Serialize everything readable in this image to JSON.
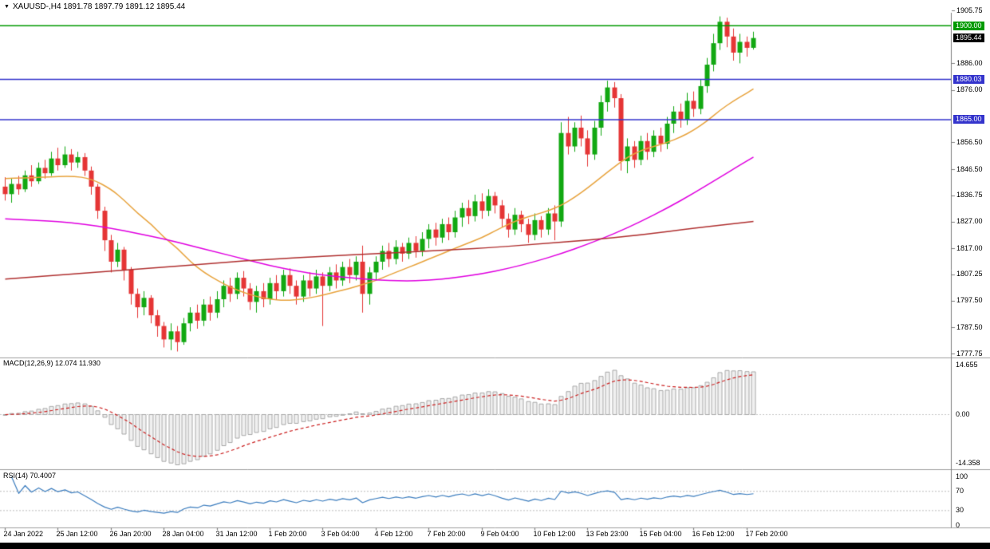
{
  "header": {
    "dropdown_icon": "▼",
    "title": "XAUUSD-,H4  1891.78 1897.79 1891.12 1895.44"
  },
  "colors": {
    "background": "#FFFFFF",
    "bull": "#12A812",
    "bear": "#E53535",
    "hline_green": "#009A00",
    "hline_blue": "#3333CC",
    "current_tag_bg": "#000000",
    "ma_fast": "#E8A33D",
    "ma_mid": "#E000E0",
    "ma_slow": "#B03030",
    "macd_bar_fill": "#F0F0F0",
    "macd_bar_stroke": "#A8A8A8",
    "macd_signal": "#CC2222",
    "rsi_line": "#3D7EBF",
    "grid_dotted": "#C8C8C8",
    "divider": "#A0A0A0",
    "scale_line": "#808080",
    "text": "#000000",
    "taskbar": "#000000"
  },
  "price_scale": {
    "ticks": [
      {
        "label": "1905.75",
        "value": 1905.75
      },
      {
        "label": "1886.00",
        "value": 1886.0
      },
      {
        "label": "1876.00",
        "value": 1876.0
      },
      {
        "label": "1856.50",
        "value": 1856.5
      },
      {
        "label": "1846.50",
        "value": 1846.5
      },
      {
        "label": "1836.75",
        "value": 1836.75
      },
      {
        "label": "1827.00",
        "value": 1827.0
      },
      {
        "label": "1817.00",
        "value": 1817.0
      },
      {
        "label": "1807.25",
        "value": 1807.25
      },
      {
        "label": "1797.50",
        "value": 1797.5
      },
      {
        "label": "1787.50",
        "value": 1787.5
      },
      {
        "label": "1777.75",
        "value": 1777.75
      }
    ],
    "tags": [
      {
        "label": "1900.00",
        "value": 1900.0,
        "bg": "#009A00",
        "name": "resistance-line-price-tag"
      },
      {
        "label": "1895.44",
        "value": 1895.44,
        "bg": "#000000",
        "name": "current-price-tag"
      },
      {
        "label": "1880.03",
        "value": 1880.03,
        "bg": "#3333CC",
        "name": "blue-line-price-tag-upper"
      },
      {
        "label": "1865.00",
        "value": 1865.0,
        "bg": "#3333CC",
        "name": "blue-line-price-tag-lower"
      }
    ]
  },
  "chart_data": {
    "type": "candlestick",
    "symbol": "XAUUSD-",
    "timeframe": "H4",
    "axis_top_price": 1905.75,
    "visible_price_range": [
      1777.75,
      1905.75
    ],
    "ohlc": [
      [
        1840,
        1843.5,
        1834.8,
        1837.2
      ],
      [
        1837.2,
        1843.2,
        1834,
        1841
      ],
      [
        1841,
        1844,
        1837,
        1839
      ],
      [
        1839,
        1846,
        1838,
        1844.2
      ],
      [
        1844.2,
        1848,
        1840,
        1842
      ],
      [
        1842,
        1849,
        1841,
        1847
      ],
      [
        1847,
        1850,
        1843,
        1845
      ],
      [
        1845,
        1853,
        1844,
        1850.5
      ],
      [
        1850.5,
        1854.5,
        1846,
        1848
      ],
      [
        1848,
        1855,
        1847,
        1852
      ],
      [
        1852,
        1854,
        1846,
        1849
      ],
      [
        1849,
        1853,
        1847,
        1851
      ],
      [
        1851,
        1852.5,
        1844,
        1846
      ],
      [
        1846,
        1847.5,
        1837,
        1840
      ],
      [
        1840,
        1841,
        1828,
        1831
      ],
      [
        1831,
        1832.5,
        1816,
        1820
      ],
      [
        1820,
        1822,
        1808,
        1812
      ],
      [
        1812,
        1819,
        1810,
        1816.5
      ],
      [
        1816.5,
        1817.5,
        1805,
        1809
      ],
      [
        1809,
        1810,
        1796,
        1800
      ],
      [
        1800,
        1802,
        1791,
        1795
      ],
      [
        1795,
        1801,
        1792,
        1798.5
      ],
      [
        1798.5,
        1799.5,
        1789,
        1792
      ],
      [
        1792,
        1794,
        1784,
        1788
      ],
      [
        1788,
        1789.5,
        1780,
        1783
      ],
      [
        1783,
        1789,
        1779,
        1786
      ],
      [
        1786,
        1788,
        1778.5,
        1782
      ],
      [
        1782,
        1791,
        1781,
        1789
      ],
      [
        1789,
        1795,
        1786,
        1793
      ],
      [
        1793,
        1796,
        1787,
        1790
      ],
      [
        1790,
        1798,
        1788,
        1796
      ],
      [
        1796,
        1799,
        1790,
        1793
      ],
      [
        1793,
        1801,
        1791,
        1798
      ],
      [
        1798,
        1805,
        1795,
        1803
      ],
      [
        1803,
        1806,
        1797,
        1800
      ],
      [
        1800,
        1808,
        1798,
        1806
      ],
      [
        1806,
        1808.5,
        1799,
        1802
      ],
      [
        1802,
        1804,
        1794,
        1797
      ],
      [
        1797,
        1803,
        1793,
        1801
      ],
      [
        1801,
        1804,
        1795,
        1798
      ],
      [
        1798,
        1806,
        1796,
        1804
      ],
      [
        1804,
        1807,
        1798,
        1801
      ],
      [
        1801,
        1809,
        1799,
        1807
      ],
      [
        1807,
        1809.5,
        1800,
        1803
      ],
      [
        1803,
        1805,
        1796,
        1799
      ],
      [
        1799,
        1807,
        1797,
        1805
      ],
      [
        1805,
        1808,
        1799,
        1802
      ],
      [
        1802,
        1809,
        1800,
        1806.5
      ],
      [
        1806.5,
        1808,
        1788,
        1803
      ],
      [
        1803,
        1810,
        1801,
        1808
      ],
      [
        1808,
        1811,
        1802,
        1805
      ],
      [
        1805,
        1812,
        1803,
        1810
      ],
      [
        1810,
        1813,
        1804,
        1807
      ],
      [
        1807,
        1814,
        1805,
        1812
      ],
      [
        1812,
        1818,
        1793,
        1800
      ],
      [
        1800,
        1810,
        1796,
        1808
      ],
      [
        1808,
        1814,
        1805,
        1812
      ],
      [
        1812,
        1818,
        1809,
        1816
      ],
      [
        1816,
        1819,
        1810,
        1813
      ],
      [
        1813,
        1820,
        1811,
        1817.5
      ],
      [
        1817.5,
        1819,
        1812,
        1815
      ],
      [
        1815,
        1821,
        1813,
        1819
      ],
      [
        1819,
        1821.5,
        1813.5,
        1816
      ],
      [
        1816,
        1823,
        1814,
        1820.5
      ],
      [
        1820.5,
        1826,
        1817,
        1824
      ],
      [
        1824,
        1826.5,
        1818,
        1821
      ],
      [
        1821,
        1828,
        1819,
        1826
      ],
      [
        1826,
        1828.5,
        1820,
        1823
      ],
      [
        1823,
        1831,
        1821,
        1828.5
      ],
      [
        1828.5,
        1834,
        1825,
        1832
      ],
      [
        1832,
        1835,
        1826,
        1829
      ],
      [
        1829,
        1837,
        1827,
        1834.5
      ],
      [
        1834.5,
        1837.5,
        1828,
        1831
      ],
      [
        1831,
        1839,
        1829,
        1836.5
      ],
      [
        1836.5,
        1838,
        1830,
        1833
      ],
      [
        1833,
        1835,
        1825,
        1828
      ],
      [
        1828,
        1830,
        1821,
        1824
      ],
      [
        1824,
        1832,
        1822,
        1829.5
      ],
      [
        1829.5,
        1831,
        1823,
        1826
      ],
      [
        1826,
        1828,
        1819,
        1822
      ],
      [
        1822,
        1830,
        1820,
        1827.5
      ],
      [
        1827.5,
        1829,
        1821,
        1824
      ],
      [
        1824,
        1832,
        1822,
        1830
      ],
      [
        1830,
        1833,
        1820,
        1827
      ],
      [
        1827,
        1864,
        1825,
        1860
      ],
      [
        1860,
        1866,
        1852,
        1855
      ],
      [
        1855,
        1864,
        1853,
        1862
      ],
      [
        1862,
        1866.5,
        1855,
        1858
      ],
      [
        1858,
        1861,
        1847.5,
        1852
      ],
      [
        1852,
        1864.5,
        1850,
        1862
      ],
      [
        1862,
        1874,
        1859,
        1871.5
      ],
      [
        1871.5,
        1879.5,
        1868,
        1877
      ],
      [
        1877,
        1879,
        1869.5,
        1873
      ],
      [
        1873,
        1874.5,
        1846,
        1849.5
      ],
      [
        1849.5,
        1858,
        1845,
        1855
      ],
      [
        1855,
        1857,
        1847,
        1850
      ],
      [
        1850,
        1859,
        1848,
        1857
      ],
      [
        1857,
        1860,
        1850,
        1853
      ],
      [
        1853,
        1861,
        1851,
        1859
      ],
      [
        1859,
        1862,
        1853,
        1856
      ],
      [
        1856,
        1866,
        1854,
        1863.5
      ],
      [
        1863.5,
        1870,
        1860,
        1868
      ],
      [
        1868,
        1871,
        1862,
        1865
      ],
      [
        1865,
        1875,
        1863,
        1872
      ],
      [
        1872,
        1875.5,
        1866,
        1869
      ],
      [
        1869,
        1880,
        1867,
        1877.5
      ],
      [
        1877.5,
        1888,
        1875,
        1885.5
      ],
      [
        1885.5,
        1897,
        1883,
        1893.5
      ],
      [
        1893.5,
        1903.5,
        1891,
        1901.5
      ],
      [
        1901.5,
        1903,
        1892,
        1896
      ],
      [
        1896,
        1899,
        1887,
        1890
      ],
      [
        1890,
        1897,
        1886,
        1894
      ],
      [
        1894,
        1896,
        1888.5,
        1891.78
      ],
      [
        1891.78,
        1897.79,
        1891.12,
        1895.44
      ]
    ],
    "hlines": [
      {
        "value": 1900.0,
        "color": "#009A00",
        "name": "green-resistance-line"
      },
      {
        "value": 1880.03,
        "color": "#3333CC",
        "name": "blue-level-line-upper"
      },
      {
        "value": 1865.0,
        "color": "#3333CC",
        "name": "blue-level-line-lower"
      }
    ],
    "moving_averages": [
      {
        "name": "fast-ma-orange",
        "color": "#E8A33D",
        "points": [
          [
            0,
            1843
          ],
          [
            6,
            1843.5
          ],
          [
            10,
            1844
          ],
          [
            13,
            1843
          ],
          [
            16,
            1839
          ],
          [
            18,
            1835
          ],
          [
            20,
            1830
          ],
          [
            22,
            1826
          ],
          [
            24,
            1821
          ],
          [
            26,
            1817
          ],
          [
            28,
            1812
          ],
          [
            30,
            1808
          ],
          [
            32,
            1805
          ],
          [
            34,
            1802.5
          ],
          [
            36,
            1800.5
          ],
          [
            38,
            1799
          ],
          [
            40,
            1798
          ],
          [
            42,
            1797.5
          ],
          [
            44,
            1797.8
          ],
          [
            46,
            1798.5
          ],
          [
            48,
            1799.5
          ],
          [
            50,
            1800.8
          ],
          [
            52,
            1802
          ],
          [
            54,
            1803.5
          ],
          [
            56,
            1805
          ],
          [
            58,
            1807
          ],
          [
            60,
            1809
          ],
          [
            62,
            1811
          ],
          [
            64,
            1813
          ],
          [
            66,
            1815
          ],
          [
            68,
            1817
          ],
          [
            70,
            1819
          ],
          [
            72,
            1821
          ],
          [
            74,
            1823.5
          ],
          [
            76,
            1826
          ],
          [
            78,
            1828
          ],
          [
            80,
            1829.5
          ],
          [
            82,
            1831
          ],
          [
            84,
            1833
          ],
          [
            86,
            1836
          ],
          [
            88,
            1839.5
          ],
          [
            90,
            1843.5
          ],
          [
            92,
            1847.5
          ],
          [
            94,
            1851
          ],
          [
            96,
            1853.5
          ],
          [
            98,
            1855
          ],
          [
            100,
            1856.5
          ],
          [
            102,
            1858.5
          ],
          [
            104,
            1861
          ],
          [
            106,
            1864.5
          ],
          [
            108,
            1868.5
          ],
          [
            110,
            1872
          ],
          [
            112,
            1875
          ],
          [
            113,
            1876.5
          ]
        ]
      },
      {
        "name": "mid-ma-magenta",
        "color": "#E000E0",
        "points": [
          [
            0,
            1828
          ],
          [
            4,
            1827.5
          ],
          [
            8,
            1827
          ],
          [
            12,
            1826
          ],
          [
            16,
            1824.5
          ],
          [
            20,
            1822.5
          ],
          [
            24,
            1820.5
          ],
          [
            28,
            1818
          ],
          [
            32,
            1815.5
          ],
          [
            36,
            1813
          ],
          [
            40,
            1810.5
          ],
          [
            44,
            1808.5
          ],
          [
            48,
            1807
          ],
          [
            52,
            1806
          ],
          [
            56,
            1805.2
          ],
          [
            60,
            1804.8
          ],
          [
            64,
            1805
          ],
          [
            68,
            1806
          ],
          [
            72,
            1807.5
          ],
          [
            76,
            1809.5
          ],
          [
            80,
            1812
          ],
          [
            84,
            1815
          ],
          [
            88,
            1818.5
          ],
          [
            92,
            1822.5
          ],
          [
            96,
            1827
          ],
          [
            100,
            1832
          ],
          [
            104,
            1837.5
          ],
          [
            108,
            1843.5
          ],
          [
            111,
            1848
          ],
          [
            113,
            1851
          ]
        ]
      },
      {
        "name": "slow-ma-darkred",
        "color": "#B03030",
        "points": [
          [
            0,
            1805.5
          ],
          [
            8,
            1807
          ],
          [
            16,
            1808.5
          ],
          [
            24,
            1810
          ],
          [
            32,
            1811.5
          ],
          [
            40,
            1813
          ],
          [
            48,
            1814
          ],
          [
            56,
            1815
          ],
          [
            64,
            1816
          ],
          [
            72,
            1817
          ],
          [
            80,
            1818.5
          ],
          [
            88,
            1820
          ],
          [
            96,
            1822
          ],
          [
            104,
            1824.5
          ],
          [
            113,
            1827
          ]
        ]
      }
    ],
    "time_labels": [
      {
        "i": 0,
        "label": "24 Jan 2022"
      },
      {
        "i": 8,
        "label": "25 Jan 12:00"
      },
      {
        "i": 16,
        "label": "26 Jan 20:00"
      },
      {
        "i": 24,
        "label": "28 Jan 04:00"
      },
      {
        "i": 32,
        "label": "31 Jan 12:00"
      },
      {
        "i": 40,
        "label": "1 Feb 20:00"
      },
      {
        "i": 48,
        "label": "3 Feb 04:00"
      },
      {
        "i": 56,
        "label": "4 Feb 12:00"
      },
      {
        "i": 64,
        "label": "7 Feb 20:00"
      },
      {
        "i": 72,
        "label": "9 Feb 04:00"
      },
      {
        "i": 80,
        "label": "10 Feb 12:00"
      },
      {
        "i": 88,
        "label": "13 Feb 23:00"
      },
      {
        "i": 96,
        "label": "15 Feb 04:00"
      },
      {
        "i": 104,
        "label": "16 Feb 12:00"
      },
      {
        "i": 112,
        "label": "17 Feb 20:00"
      }
    ],
    "indicators": {
      "macd": {
        "title": "MACD(12,26,9) 12.074 11.930",
        "fast": 12,
        "slow": 26,
        "signal_period": 9,
        "value_main": "12.074",
        "value_signal": "11.930",
        "scale": [
          {
            "label": "14.655",
            "value": 14.655
          },
          {
            "label": "0.00",
            "value": 0
          },
          {
            "label": "-14.358",
            "value": -14.358
          }
        ]
      },
      "rsi": {
        "title": "RSI(14) 70.4007",
        "period": 14,
        "value": "70.4007",
        "levels": [
          70,
          30
        ],
        "scale": [
          {
            "label": "100",
            "value": 100
          },
          {
            "label": "70",
            "value": 70
          },
          {
            "label": "30",
            "value": 30
          },
          {
            "label": "0",
            "value": 0
          }
        ]
      }
    }
  }
}
